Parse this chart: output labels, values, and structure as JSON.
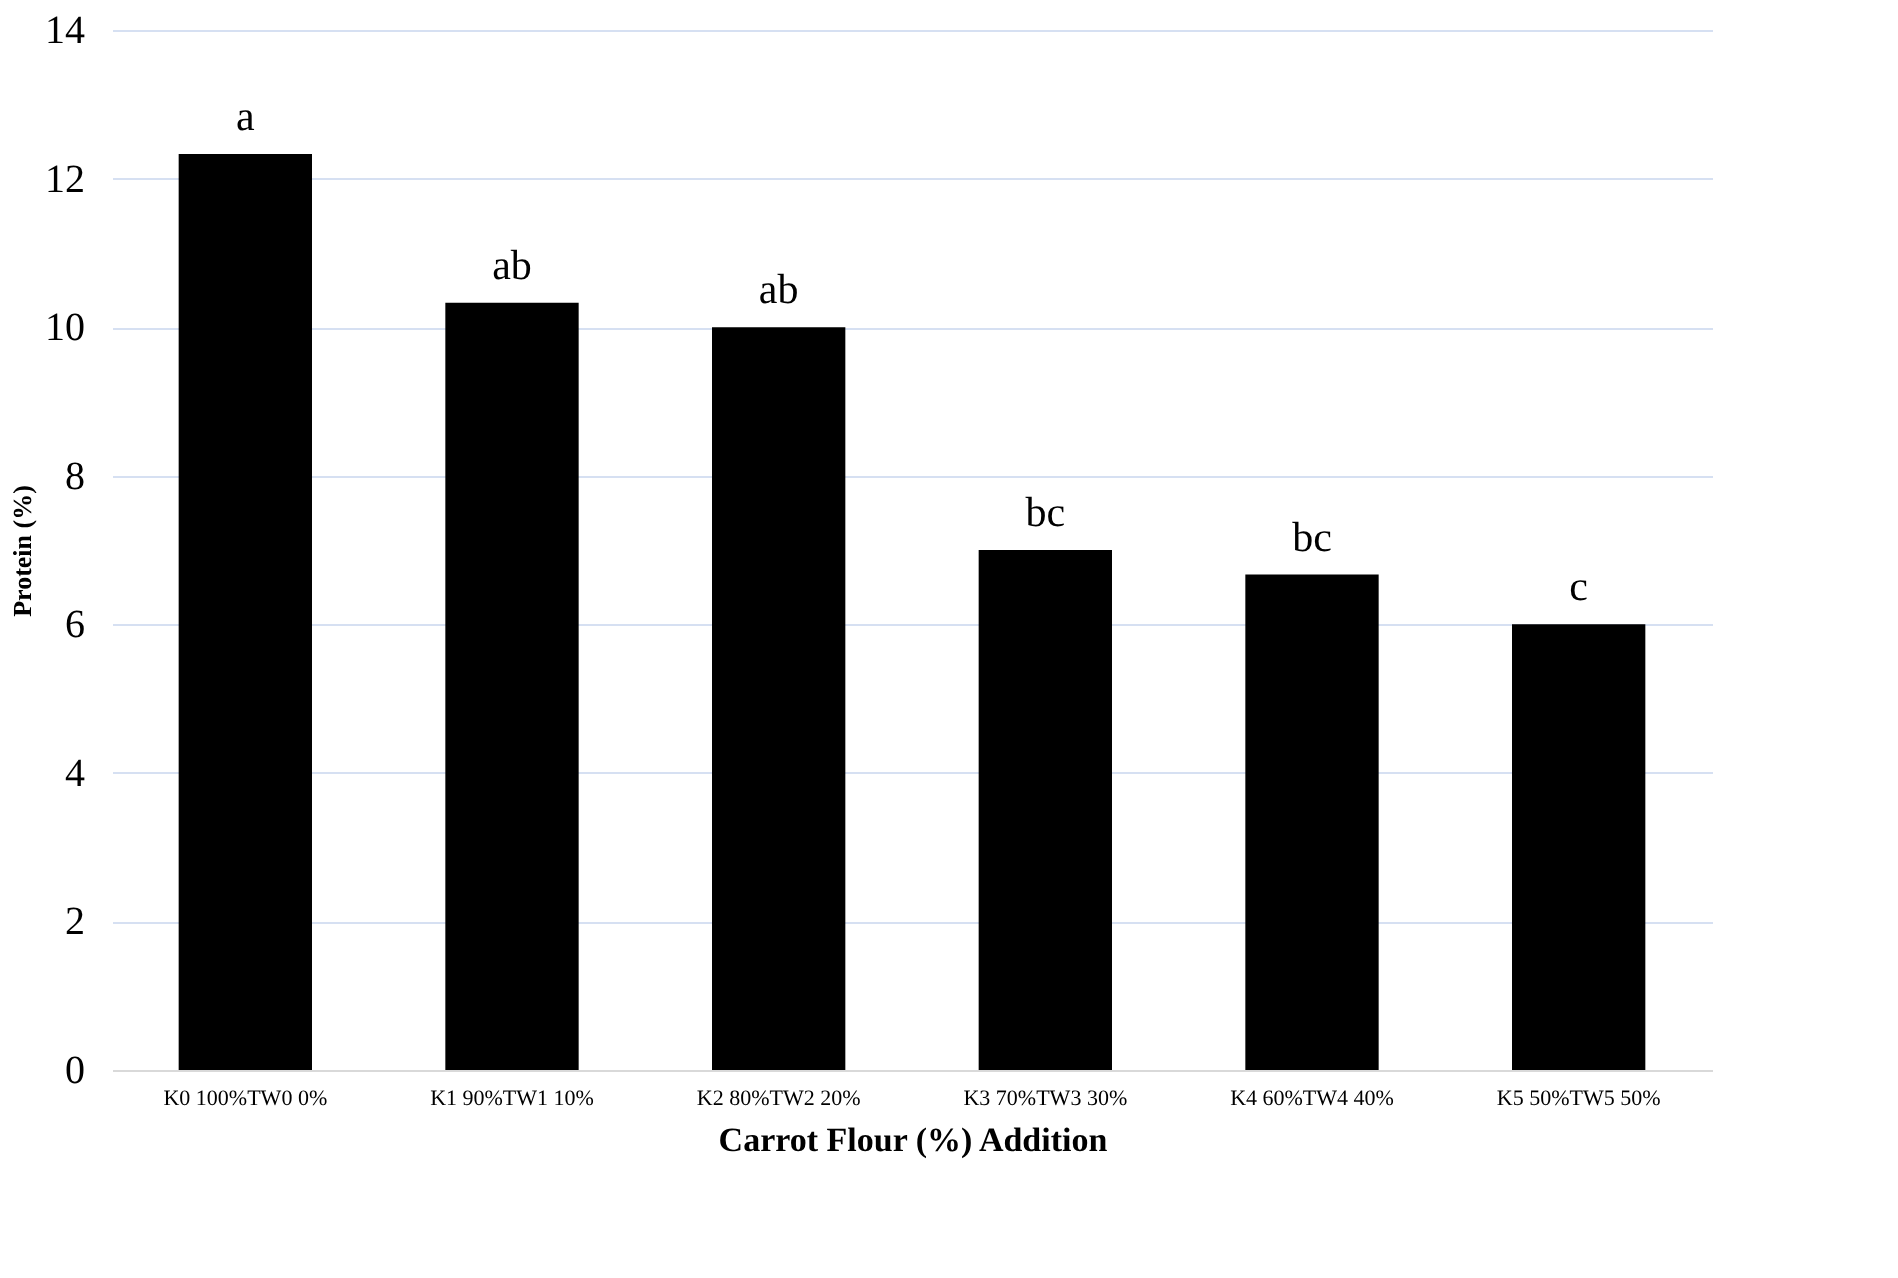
{
  "chart_data": {
    "type": "bar",
    "xlabel": "Carrot  Flour (%) Addition",
    "ylabel": "Protein (%)",
    "categories": [
      "K0 100%TW0 0%",
      "K1 90%TW1 10%",
      "K2 80%TW2 20%",
      "K3 70%TW3 30%",
      "K4 60%TW4 40%",
      "K5 50%TW5 50%"
    ],
    "values": [
      12.33,
      10.33,
      10.0,
      7.0,
      6.67,
      6.0
    ],
    "value_labels": [
      "a",
      "ab",
      "ab",
      "bc",
      "bc",
      "c"
    ],
    "color": "#000000",
    "ylim": [
      0,
      14
    ],
    "yticks": [
      0,
      2,
      4,
      6,
      8,
      10,
      12,
      14
    ],
    "grid": "y"
  }
}
